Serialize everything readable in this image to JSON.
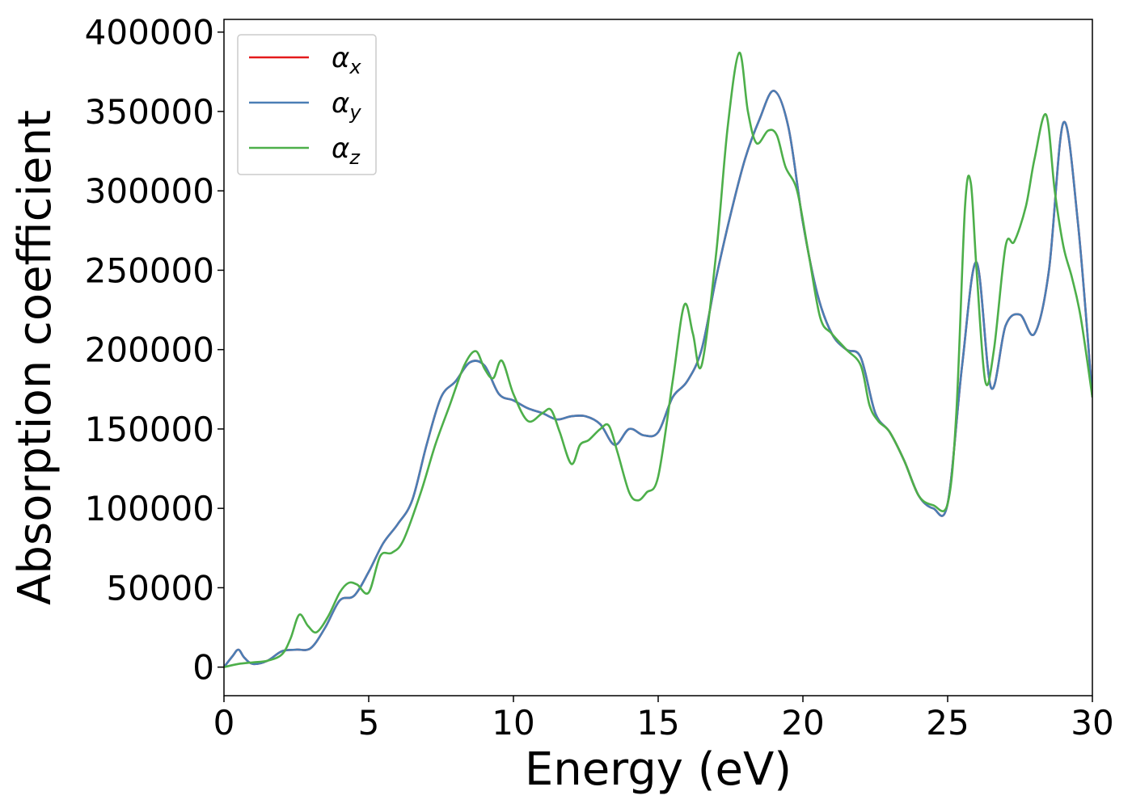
{
  "chart_data": {
    "type": "line",
    "xlabel": "Energy (eV)",
    "ylabel": "Absorption coefficient",
    "xlim": [
      0,
      30
    ],
    "ylim": [
      -18000,
      408000
    ],
    "xticks": [
      0,
      5,
      10,
      15,
      20,
      25,
      30
    ],
    "yticks": [
      0,
      50000,
      100000,
      150000,
      200000,
      250000,
      300000,
      350000,
      400000
    ],
    "xtick_labels": [
      "0",
      "5",
      "10",
      "15",
      "20",
      "25",
      "30"
    ],
    "ytick_labels": [
      "0",
      "50000",
      "100000",
      "150000",
      "200000",
      "250000",
      "300000",
      "350000",
      "400000"
    ],
    "grid": false,
    "legend_position": "top-left",
    "series": [
      {
        "name": "αx",
        "base": "α",
        "sub": "x",
        "color": "#e41a1c",
        "x": [
          0,
          0.3,
          0.5,
          0.7,
          1,
          1.5,
          2,
          2.5,
          3,
          3.5,
          4,
          4.5,
          5,
          5.5,
          6,
          6.5,
          7,
          7.5,
          8,
          8.5,
          9,
          9.5,
          10,
          10.5,
          11,
          11.5,
          12,
          12.5,
          13,
          13.5,
          14,
          14.5,
          15,
          15.5,
          16,
          16.5,
          17,
          17.5,
          18,
          18.5,
          19,
          19.5,
          20,
          20.5,
          21,
          21.5,
          22,
          22.5,
          23,
          23.5,
          24,
          24.5,
          25,
          25.5,
          26,
          26.5,
          27,
          27.5,
          28,
          28.5,
          29,
          29.5,
          30
        ],
        "y": [
          0,
          7000,
          11000,
          6000,
          2000,
          4000,
          10000,
          11000,
          12000,
          25000,
          42000,
          45000,
          60000,
          78000,
          90000,
          105000,
          140000,
          170000,
          180000,
          192000,
          190000,
          172000,
          168000,
          163000,
          160000,
          156000,
          158000,
          158000,
          153000,
          140000,
          150000,
          146000,
          148000,
          170000,
          180000,
          200000,
          245000,
          285000,
          320000,
          345000,
          363000,
          340000,
          280000,
          235000,
          210000,
          200000,
          195000,
          160000,
          148000,
          130000,
          108000,
          100000,
          103000,
          190000,
          255000,
          176000,
          215000,
          222000,
          210000,
          250000,
          343000,
          280000,
          170000
        ]
      },
      {
        "name": "αy",
        "base": "α",
        "sub": "y",
        "color": "#4a7eb5",
        "x": [
          0,
          0.3,
          0.5,
          0.7,
          1,
          1.5,
          2,
          2.5,
          3,
          3.5,
          4,
          4.5,
          5,
          5.5,
          6,
          6.5,
          7,
          7.5,
          8,
          8.5,
          9,
          9.5,
          10,
          10.5,
          11,
          11.5,
          12,
          12.5,
          13,
          13.5,
          14,
          14.5,
          15,
          15.5,
          16,
          16.5,
          17,
          17.5,
          18,
          18.5,
          19,
          19.5,
          20,
          20.5,
          21,
          21.5,
          22,
          22.5,
          23,
          23.5,
          24,
          24.5,
          25,
          25.5,
          26,
          26.5,
          27,
          27.5,
          28,
          28.5,
          29,
          29.5,
          30
        ],
        "y": [
          0,
          7000,
          11000,
          6000,
          2000,
          4000,
          10000,
          11000,
          12000,
          25000,
          42000,
          45000,
          60000,
          78000,
          90000,
          105000,
          140000,
          170000,
          180000,
          192000,
          190000,
          172000,
          168000,
          163000,
          160000,
          156000,
          158000,
          158000,
          153000,
          140000,
          150000,
          146000,
          148000,
          170000,
          180000,
          200000,
          245000,
          285000,
          320000,
          345000,
          363000,
          340000,
          280000,
          235000,
          210000,
          200000,
          195000,
          160000,
          148000,
          130000,
          108000,
          100000,
          103000,
          190000,
          255000,
          176000,
          215000,
          222000,
          210000,
          250000,
          343000,
          280000,
          170000
        ]
      },
      {
        "name": "αz",
        "base": "α",
        "sub": "z",
        "color": "#4daf4a",
        "x": [
          0,
          0.5,
          1,
          1.5,
          2,
          2.3,
          2.6,
          2.9,
          3.2,
          3.6,
          4,
          4.3,
          4.6,
          5,
          5.4,
          5.8,
          6.2,
          6.8,
          7.3,
          7.8,
          8.3,
          8.7,
          9,
          9.3,
          9.6,
          10,
          10.5,
          11,
          11.3,
          11.6,
          12,
          12.3,
          12.6,
          13,
          13.3,
          13.6,
          14,
          14.3,
          14.6,
          15,
          15.5,
          15.9,
          16.2,
          16.5,
          17,
          17.4,
          17.8,
          18.1,
          18.4,
          18.8,
          19.1,
          19.4,
          19.8,
          20.2,
          20.6,
          21,
          21.5,
          22,
          22.3,
          22.6,
          23,
          23.5,
          24,
          24.5,
          25,
          25.3,
          25.6,
          25.8,
          26,
          26.3,
          26.6,
          27,
          27.3,
          27.7,
          28,
          28.4,
          28.7,
          29,
          29.3,
          29.6,
          30
        ],
        "y": [
          0,
          2000,
          3000,
          4000,
          8000,
          18000,
          33000,
          26000,
          22000,
          32000,
          47000,
          53000,
          52000,
          47000,
          70000,
          72000,
          80000,
          110000,
          140000,
          165000,
          190000,
          199000,
          188000,
          182000,
          193000,
          172000,
          155000,
          160000,
          162000,
          148000,
          128000,
          140000,
          143000,
          150000,
          152000,
          135000,
          110000,
          105000,
          110000,
          120000,
          180000,
          228000,
          210000,
          190000,
          260000,
          340000,
          387000,
          350000,
          330000,
          338000,
          335000,
          315000,
          300000,
          260000,
          220000,
          210000,
          200000,
          190000,
          165000,
          155000,
          148000,
          130000,
          108000,
          102000,
          103000,
          160000,
          290000,
          305000,
          250000,
          180000,
          200000,
          265000,
          268000,
          290000,
          320000,
          348000,
          300000,
          265000,
          245000,
          220000,
          170000
        ]
      }
    ]
  }
}
